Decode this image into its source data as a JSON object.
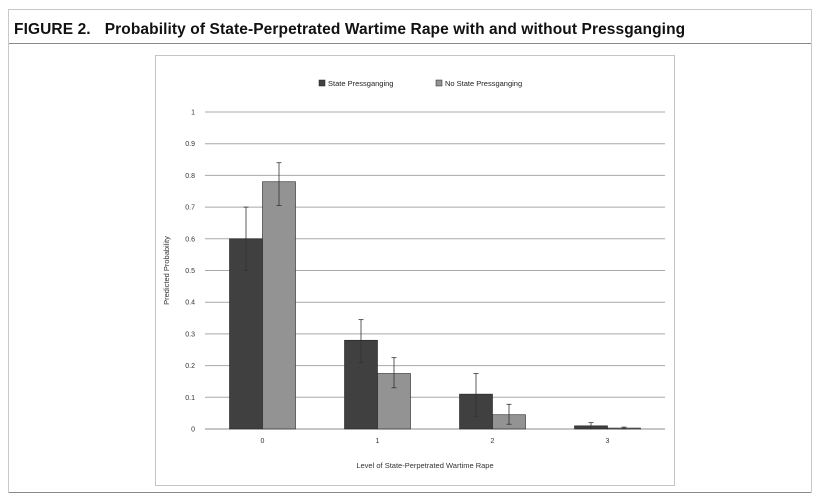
{
  "figure": {
    "number": "FIGURE 2.",
    "title": "Probability of State-Perpetrated Wartime Rape with and without Pressganging"
  },
  "chart_data": {
    "type": "bar",
    "title": "",
    "xlabel": "Level of State-Perpetrated Wartime Rape",
    "ylabel": "Predicted Probability",
    "categories": [
      "0",
      "1",
      "2",
      "3"
    ],
    "ylim": [
      0,
      1
    ],
    "yticks": [
      "0",
      "0.1",
      "0.2",
      "0.3",
      "0.4",
      "0.5",
      "0.6",
      "0.7",
      "0.8",
      "0.9",
      "1"
    ],
    "grid": true,
    "legend_position": "top",
    "error_bars": true,
    "series": [
      {
        "name": "State Pressganging",
        "color": "#404040",
        "values": [
          0.6,
          0.28,
          0.11,
          0.01
        ],
        "error_low": [
          0.5,
          0.21,
          0.04,
          0.0
        ],
        "error_high": [
          0.7,
          0.345,
          0.175,
          0.02
        ]
      },
      {
        "name": "No State Pressganging",
        "color": "#939393",
        "values": [
          0.78,
          0.175,
          0.045,
          0.003
        ],
        "error_low": [
          0.705,
          0.13,
          0.015,
          0.0
        ],
        "error_high": [
          0.84,
          0.225,
          0.078,
          0.006
        ]
      }
    ]
  }
}
